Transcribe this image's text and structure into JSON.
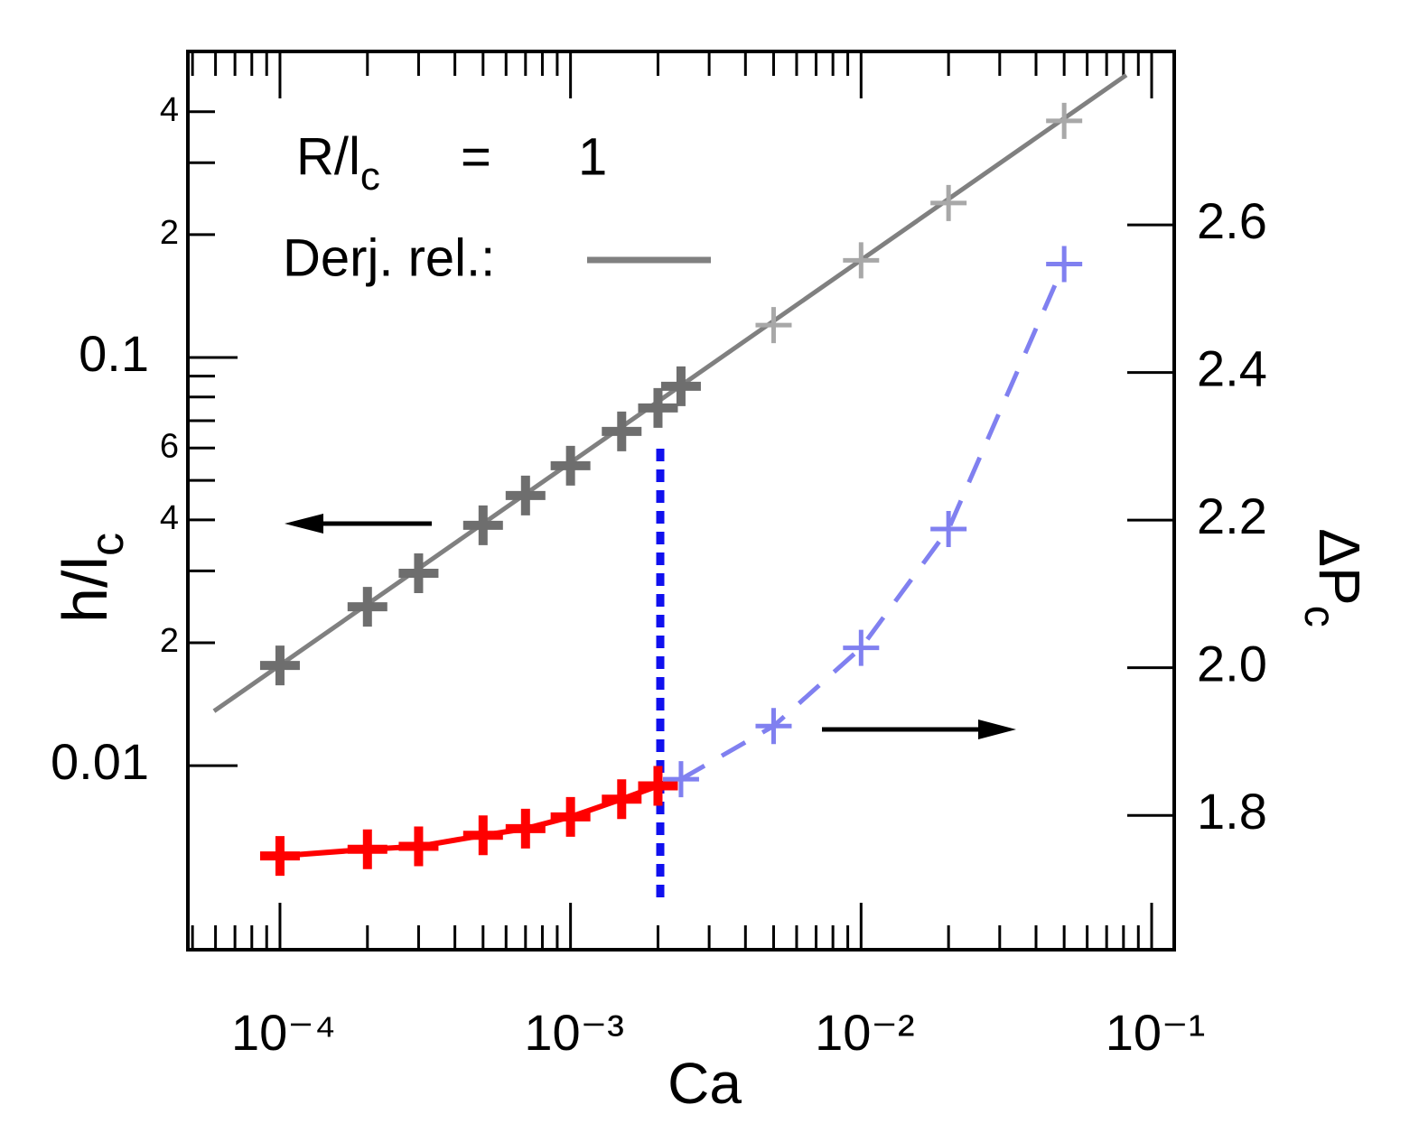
{
  "chart_data": {
    "type": "scatter",
    "xlabel": "Ca",
    "ylabel": {
      "main": "h/l",
      "sub": "c"
    },
    "y2label": {
      "main": "ΔP",
      "sub": "c"
    },
    "annotation": {
      "main": "R/l",
      "sub": "c",
      "equals": "=",
      "value": "1"
    },
    "xscale": "log",
    "yscale": "log",
    "y2scale": "linear",
    "xlim": [
      4.82e-05,
      0.1196
    ],
    "ylim": [
      0.00354,
      0.562
    ],
    "y2lim": [
      1.618,
      2.835
    ],
    "xticks": [
      {
        "value": 0.0001,
        "label": "10⁻⁴"
      },
      {
        "value": 0.001,
        "label": "10⁻³"
      },
      {
        "value": 0.01,
        "label": "10⁻²"
      },
      {
        "value": 0.1,
        "label": "10⁻¹"
      }
    ],
    "xminor_ticks": [
      5e-05,
      6e-05,
      7e-05,
      8e-05,
      9e-05,
      0.0002,
      0.0003,
      0.0004,
      0.0005,
      0.0006,
      0.0007,
      0.0008,
      0.0009,
      0.002,
      0.003,
      0.004,
      0.005,
      0.006,
      0.007,
      0.008,
      0.009,
      0.02,
      0.03,
      0.04,
      0.05,
      0.06,
      0.07,
      0.08,
      0.09
    ],
    "yticks": [
      0.01,
      0.1
    ],
    "yminor_ticks": [
      {
        "value": 0.02,
        "label": "2"
      },
      {
        "value": 0.03
      },
      {
        "value": 0.04,
        "label": "4"
      },
      {
        "value": 0.05
      },
      {
        "value": 0.06,
        "label": "6"
      },
      {
        "value": 0.07
      },
      {
        "value": 0.08
      },
      {
        "value": 0.09
      },
      {
        "value": 0.2,
        "label": "2"
      },
      {
        "value": 0.3
      },
      {
        "value": 0.4,
        "label": "4"
      }
    ],
    "y2ticks": [
      1.8,
      {
        "value": 2,
        "label": "2.0"
      },
      2.2,
      2.4,
      2.6
    ],
    "series": [
      {
        "name": "Derj. rel.:",
        "color": "#808080",
        "line": "solid",
        "axis": "y",
        "x": [
          5.93e-05,
          0.0818
        ],
        "values": [
          0.0136,
          0.492
        ]
      },
      {
        "color": "#6e6e6e",
        "marker": "bold",
        "axis": "y",
        "x": [
          0.0001,
          0.0002,
          0.0003,
          0.0005,
          0.0007,
          0.001,
          0.0015,
          0.002,
          0.0024
        ],
        "values": [
          0.0176,
          0.0245,
          0.0296,
          0.0388,
          0.0459,
          0.0543,
          0.0659,
          0.0752,
          0.085
        ]
      },
      {
        "color": "#a8a8a8",
        "marker": "thin",
        "axis": "y",
        "x": [
          0.005,
          0.01,
          0.02,
          0.05
        ],
        "values": [
          0.12,
          0.173,
          0.239,
          0.38
        ]
      },
      {
        "color": "#ff0000",
        "marker": "bold",
        "line": "solid",
        "axis": "y2",
        "x": [
          0.0001,
          0.0002,
          0.0003,
          0.0005,
          0.0007,
          0.001,
          0.0015,
          0.002
        ],
        "values": [
          1.745,
          1.754,
          1.758,
          1.773,
          1.782,
          1.798,
          1.822,
          1.84
        ]
      },
      {
        "color": "#8080f0",
        "marker": "thin",
        "line": "dashed",
        "axis": "y2",
        "x": [
          0.0024,
          0.005,
          0.01,
          0.02,
          0.05
        ],
        "values": [
          1.849,
          1.921,
          2.027,
          2.188,
          2.547
        ]
      }
    ]
  }
}
